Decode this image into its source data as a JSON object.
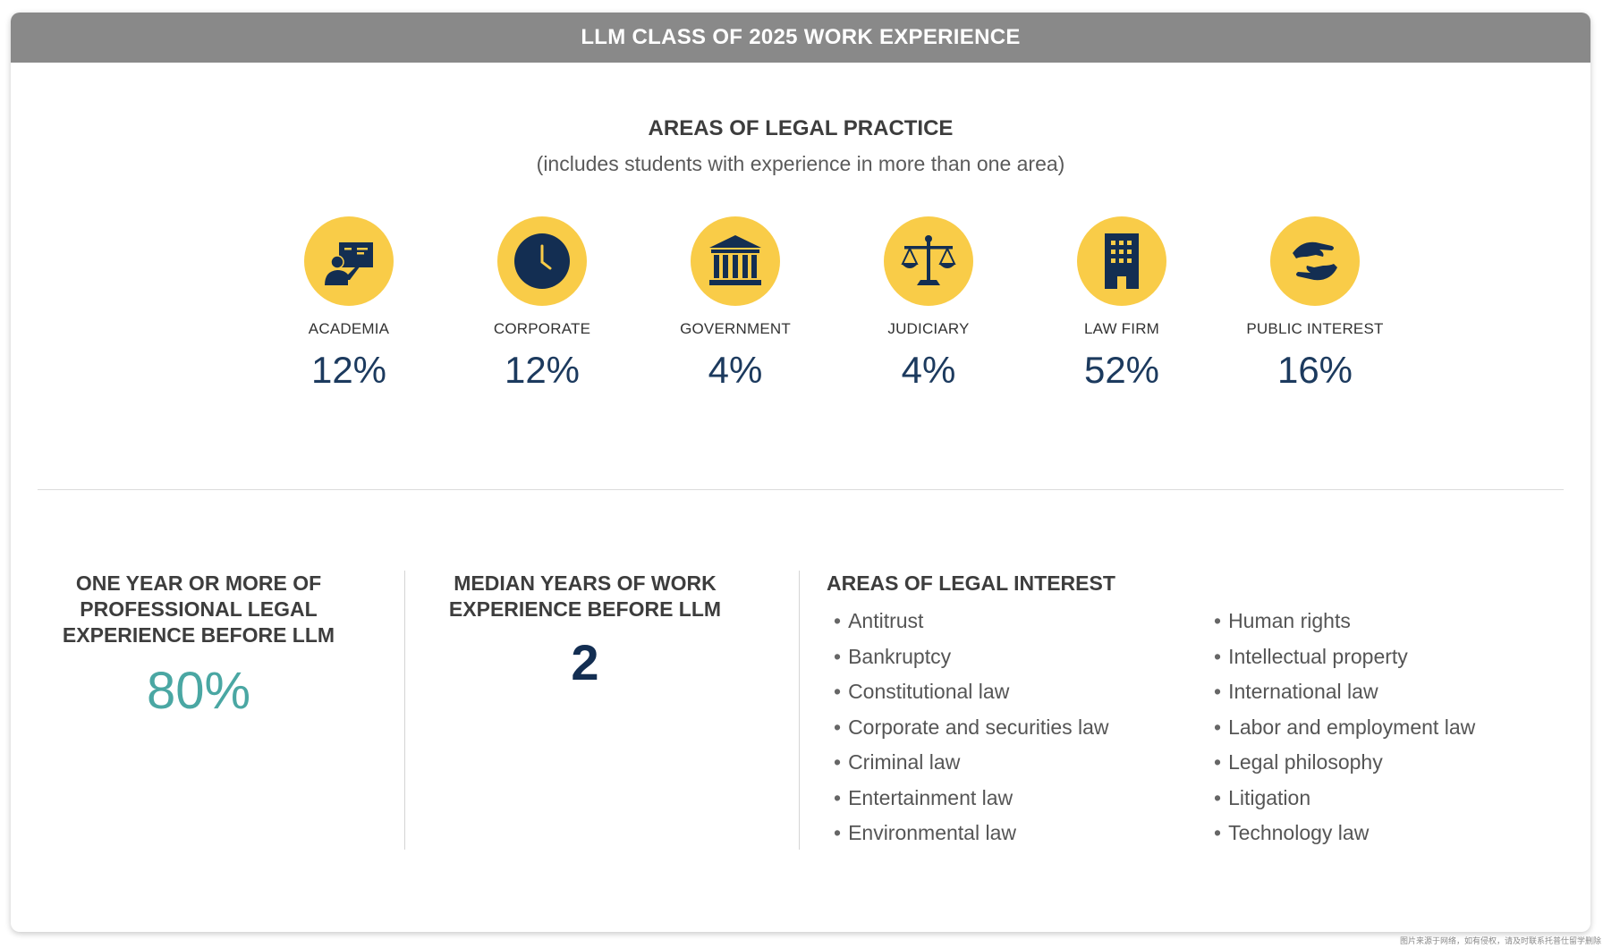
{
  "banner": {
    "title": "LLM CLASS OF 2025 WORK EXPERIENCE"
  },
  "practice": {
    "title": "AREAS OF LEGAL PRACTICE",
    "subtitle": "(includes students with experience in more than one area)",
    "areas": [
      {
        "label": "ACADEMIA",
        "percent": "12%",
        "icon": "teacher-board-icon"
      },
      {
        "label": "CORPORATE",
        "percent": "12%",
        "icon": "clock-icon"
      },
      {
        "label": "GOVERNMENT",
        "percent": "4%",
        "icon": "government-building-icon"
      },
      {
        "label": "JUDICIARY",
        "percent": "4%",
        "icon": "scales-of-justice-icon"
      },
      {
        "label": "LAW FIRM",
        "percent": "52%",
        "icon": "office-building-icon"
      },
      {
        "label": "PUBLIC INTEREST",
        "percent": "16%",
        "icon": "helping-hands-icon"
      }
    ]
  },
  "stats": {
    "experience": {
      "title": "ONE YEAR OR MORE OF PROFESSIONAL LEGAL EXPERIENCE BEFORE LLM",
      "value": "80%"
    },
    "median": {
      "title": "MEDIAN YEARS OF WORK EXPERIENCE BEFORE LLM",
      "value": "2"
    }
  },
  "interest": {
    "title": "AREAS OF LEGAL INTEREST",
    "left": [
      "Antitrust",
      "Bankruptcy",
      "Constitutional law",
      "Corporate and securities law",
      "Criminal law",
      "Entertainment law",
      "Environmental law"
    ],
    "right": [
      "Human rights",
      "Intellectual property",
      "International law",
      "Labor and employment law",
      "Legal philosophy",
      "Litigation",
      "Technology law"
    ]
  },
  "footnote": "图片来源于网络，如有侵权，请及时联系托普仕留学删除",
  "colors": {
    "banner": "#898989",
    "icon_circle": "#f9cc48",
    "navy": "#132e52",
    "teal": "#4aa7a3"
  }
}
